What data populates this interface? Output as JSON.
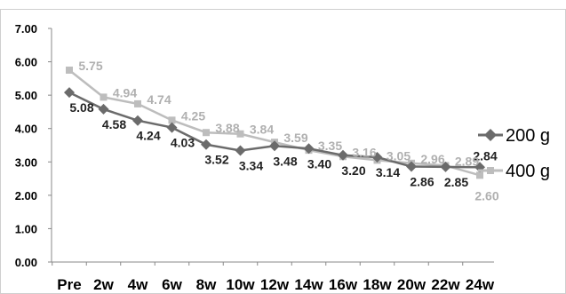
{
  "chart_data": {
    "type": "line",
    "categories": [
      "Pre",
      "2w",
      "4w",
      "6w",
      "8w",
      "10w",
      "12w",
      "14w",
      "16w",
      "18w",
      "20w",
      "22w",
      "24w"
    ],
    "ylim": [
      0,
      7
    ],
    "yticks": [
      "0.00",
      "1.00",
      "2.00",
      "3.00",
      "4.00",
      "5.00",
      "6.00",
      "7.00"
    ],
    "grid": false,
    "legend_position": "right",
    "series": [
      {
        "name": "200 g",
        "color": "#6b6b6b",
        "marker": "diamond",
        "values": [
          5.08,
          4.58,
          4.24,
          4.03,
          3.52,
          3.34,
          3.48,
          3.4,
          3.2,
          3.14,
          2.86,
          2.85,
          2.84
        ],
        "labels": [
          "5.08",
          "4.58",
          "4.24",
          "4.03",
          "3.52",
          "3.34",
          "3.48",
          "3.40",
          "3.20",
          "3.14",
          "2.86",
          "2.85",
          "2.84"
        ],
        "label_color": "#222222"
      },
      {
        "name": "400 g",
        "color": "#bdbdbd",
        "marker": "square",
        "values": [
          5.75,
          4.94,
          4.74,
          4.25,
          3.88,
          3.84,
          3.59,
          3.35,
          3.16,
          3.05,
          2.96,
          2.89,
          2.6
        ],
        "labels": [
          "5.75",
          "4.94",
          "4.74",
          "4.25",
          "3.88",
          "3.84",
          "3.59",
          "3.35",
          "3.16",
          "3.05",
          "2.96",
          "2.89",
          "2.60"
        ],
        "label_color": "#b0b0b0"
      }
    ]
  }
}
